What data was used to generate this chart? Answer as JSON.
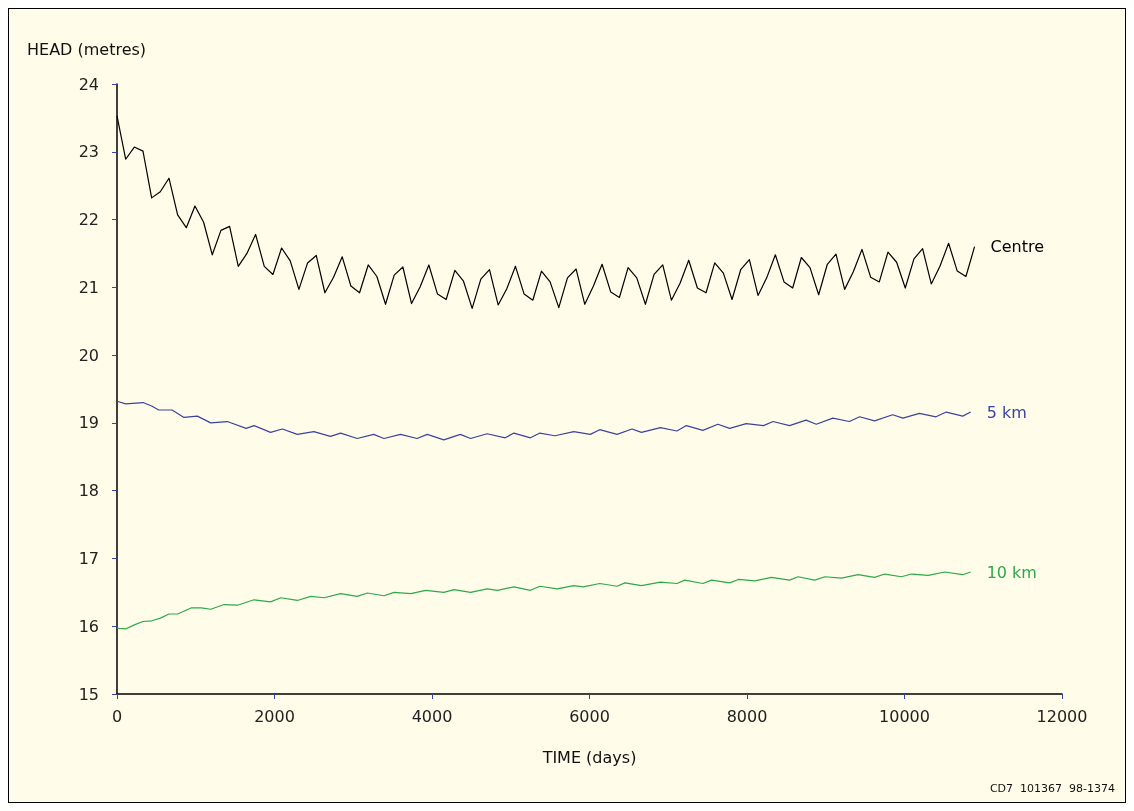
{
  "chart_data": {
    "type": "line",
    "xlabel": "TIME (days)",
    "ylabel": "HEAD (metres)",
    "xlim": [
      0,
      12000
    ],
    "xticks": [
      0,
      2000,
      4000,
      6000,
      8000,
      10000,
      12000
    ],
    "ylim": [
      15,
      24
    ],
    "yticks": [
      15,
      16,
      17,
      18,
      19,
      20,
      21,
      22,
      23,
      24
    ],
    "grid": false,
    "legend": false,
    "marker": "none",
    "line_style": "solid",
    "annotations": [
      "CD7  101367  98-1374"
    ],
    "series": [
      {
        "name": "Centre",
        "color": "#000000",
        "x": [
          0,
          110,
          220,
          330,
          440,
          550,
          660,
          770,
          880,
          990,
          1100,
          1210,
          1320,
          1430,
          1540,
          1650,
          1760,
          1870,
          1980,
          2090,
          2200,
          2310,
          2420,
          2530,
          2640,
          2750,
          2860,
          2970,
          3080,
          3190,
          3300,
          3410,
          3520,
          3630,
          3740,
          3850,
          3960,
          4070,
          4180,
          4290,
          4400,
          4510,
          4620,
          4730,
          4840,
          4950,
          5060,
          5170,
          5280,
          5390,
          5500,
          5610,
          5720,
          5830,
          5940,
          6050,
          6160,
          6270,
          6380,
          6490,
          6600,
          6710,
          6820,
          6930,
          7040,
          7150,
          7260,
          7370,
          7480,
          7590,
          7700,
          7810,
          7920,
          8030,
          8140,
          8250,
          8360,
          8470,
          8580,
          8690,
          8800,
          8910,
          9020,
          9130,
          9240,
          9350,
          9460,
          9570,
          9680,
          9790,
          9900,
          10010,
          10120,
          10230,
          10340,
          10450,
          10560,
          10670,
          10780,
          10890
        ],
        "values": [
          23.53,
          22.89,
          23.07,
          23.01,
          22.32,
          22.41,
          22.61,
          22.07,
          21.88,
          22.2,
          21.96,
          21.48,
          21.84,
          21.9,
          21.31,
          21.5,
          21.78,
          21.31,
          21.19,
          21.58,
          21.39,
          20.97,
          21.36,
          21.47,
          20.92,
          21.15,
          21.45,
          21.02,
          20.92,
          21.33,
          21.16,
          20.75,
          21.18,
          21.3,
          20.76,
          21.01,
          21.33,
          20.9,
          20.82,
          21.25,
          21.09,
          20.69,
          21.12,
          21.26,
          20.74,
          20.98,
          21.31,
          20.9,
          20.81,
          21.24,
          21.08,
          20.7,
          21.14,
          21.27,
          20.75,
          21.02,
          21.34,
          20.93,
          20.85,
          21.29,
          21.14,
          20.75,
          21.19,
          21.33,
          20.81,
          21.06,
          21.4,
          20.99,
          20.92,
          21.36,
          21.21,
          20.82,
          21.26,
          21.41,
          20.88,
          21.14,
          21.48,
          21.08,
          20.99,
          21.44,
          21.29,
          20.89,
          21.34,
          21.49,
          20.97,
          21.23,
          21.56,
          21.15,
          21.08,
          21.52,
          21.37,
          20.99,
          21.42,
          21.57,
          21.05,
          21.31,
          21.65,
          21.24,
          21.16,
          21.6
        ]
      },
      {
        "name": "5 km",
        "color": "#3a44a0",
        "x": [
          0,
          110,
          330,
          440,
          530,
          700,
          850,
          1020,
          1190,
          1400,
          1640,
          1740,
          1950,
          2100,
          2290,
          2500,
          2710,
          2840,
          3050,
          3260,
          3390,
          3600,
          3810,
          3940,
          4150,
          4360,
          4490,
          4700,
          4930,
          5040,
          5250,
          5370,
          5560,
          5800,
          6010,
          6130,
          6350,
          6540,
          6660,
          6900,
          7110,
          7230,
          7440,
          7630,
          7780,
          7990,
          8210,
          8330,
          8540,
          8750,
          8880,
          9090,
          9300,
          9430,
          9620,
          9850,
          9980,
          10190,
          10400,
          10530,
          10740,
          10840
        ],
        "values": [
          19.32,
          19.28,
          19.3,
          19.25,
          19.19,
          19.19,
          19.08,
          19.1,
          19.0,
          19.02,
          18.92,
          18.96,
          18.86,
          18.91,
          18.83,
          18.87,
          18.8,
          18.85,
          18.77,
          18.83,
          18.77,
          18.83,
          18.77,
          18.83,
          18.75,
          18.83,
          18.77,
          18.84,
          18.78,
          18.85,
          18.78,
          18.85,
          18.81,
          18.87,
          18.83,
          18.9,
          18.83,
          18.91,
          18.86,
          18.93,
          18.88,
          18.96,
          18.89,
          18.98,
          18.92,
          18.99,
          18.96,
          19.02,
          18.96,
          19.04,
          18.98,
          19.07,
          19.02,
          19.09,
          19.03,
          19.12,
          19.07,
          19.14,
          19.09,
          19.16,
          19.1,
          19.16
        ]
      },
      {
        "name": "10 km",
        "color": "#2ea84a",
        "x": [
          0,
          110,
          220,
          330,
          440,
          550,
          660,
          770,
          940,
          1070,
          1190,
          1360,
          1530,
          1740,
          1950,
          2080,
          2290,
          2460,
          2630,
          2840,
          3050,
          3180,
          3390,
          3520,
          3730,
          3920,
          4150,
          4280,
          4490,
          4700,
          4830,
          5040,
          5250,
          5370,
          5590,
          5800,
          5920,
          6130,
          6350,
          6450,
          6660,
          6900,
          7110,
          7210,
          7440,
          7550,
          7780,
          7890,
          8100,
          8310,
          8540,
          8650,
          8860,
          8990,
          9200,
          9410,
          9620,
          9750,
          9960,
          10090,
          10300,
          10510,
          10740,
          10840
        ],
        "values": [
          15.97,
          15.96,
          16.02,
          16.07,
          16.08,
          16.12,
          16.18,
          16.18,
          16.27,
          16.27,
          16.25,
          16.32,
          16.31,
          16.39,
          16.36,
          16.42,
          16.38,
          16.44,
          16.42,
          16.48,
          16.44,
          16.49,
          16.45,
          16.5,
          16.48,
          16.53,
          16.5,
          16.54,
          16.5,
          16.55,
          16.53,
          16.58,
          16.53,
          16.59,
          16.55,
          16.6,
          16.58,
          16.63,
          16.59,
          16.64,
          16.6,
          16.65,
          16.63,
          16.68,
          16.63,
          16.68,
          16.64,
          16.69,
          16.67,
          16.72,
          16.68,
          16.73,
          16.68,
          16.73,
          16.71,
          16.76,
          16.72,
          16.77,
          16.73,
          16.77,
          16.75,
          16.8,
          16.76,
          16.8
        ]
      }
    ]
  }
}
